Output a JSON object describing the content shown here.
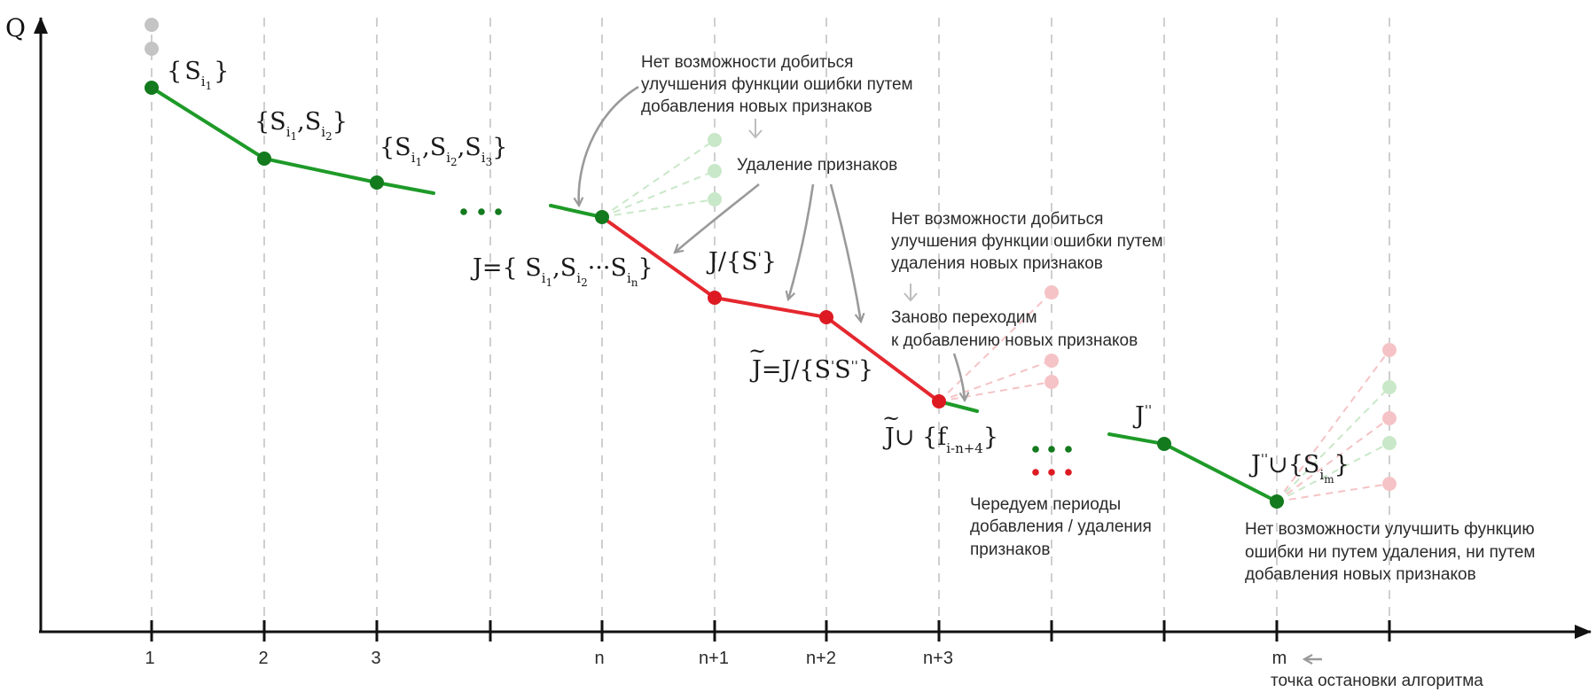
{
  "axis": {
    "y_label": "Q",
    "x_ticks": [
      "1",
      "2",
      "3",
      "n",
      "n+1",
      "n+2",
      "n+3",
      "m"
    ]
  },
  "annotations": {
    "no_add_improvement": [
      "Нет возможности добиться",
      "улучшения функции ошибки путем",
      "добавления новых признаков"
    ],
    "removal": "Удаление признаков",
    "no_remove_improvement": [
      "Нет возможности добиться",
      "улучшения функции ошибки путем",
      "удаления новых признаков"
    ],
    "restart_adding": [
      "Заново переходим",
      "к добавлению новых признаков"
    ],
    "alternate": [
      "Чередуем периоды",
      "добавления / удаления",
      "признаков"
    ],
    "no_improvement_final": [
      "Нет возможности улучшить функцию",
      "ошибки ни путем удаления, ни путем",
      "добавления новых признаков"
    ],
    "stop_point": "точка остановки алгоритма"
  },
  "set_labels": {
    "s1": {
      "brace_open": "{",
      "base": "S",
      "sub": "i",
      "subsub": "1",
      "brace_close": "}"
    },
    "s12": {
      "text": "{S",
      "sub1": "i",
      "subsub1": "1",
      "mid": ",S",
      "sub2": "i",
      "subsub2": "2",
      "end": "}"
    },
    "s123": {
      "text": "{S",
      "sub1": "i",
      "subsub1": "1",
      "mid1": ",S",
      "sub2": "i",
      "subsub2": "2",
      "mid2": ",S",
      "sub3": "i",
      "subsub3": "3",
      "end": "}"
    },
    "j_full": {
      "text": "J={ S",
      "sub1": "i",
      "subsub1": "1",
      "mid1": ",S",
      "sub2": "i",
      "subsub2": "2",
      "dots": "···S",
      "sub3": "i",
      "subsub3": "n",
      "end": "}"
    },
    "j_remove1": {
      "text": "J/{S",
      "prime": "'",
      "end": "}"
    },
    "j_tilde": {
      "tilde": "~",
      "text": "J=J/{S",
      "p1": "'",
      "mid": "S",
      "p2": "''",
      "end": "}"
    },
    "j_tilde_union": {
      "tilde": "~",
      "text": "J∪ {f",
      "sub": "i-n+4",
      "end": "}"
    },
    "j_dd": {
      "text": "J",
      "prime": "''"
    },
    "j_dd_union": {
      "text": "J",
      "prime": "''",
      "mid": "∪{S",
      "sub": "i",
      "subsub": "m",
      "end": "}"
    }
  },
  "colors": {
    "add_phase": "#1e9a28",
    "remove_phase": "#e5282f",
    "point_green": "#137a1e",
    "point_red": "#dd1a22",
    "faded_green": "#c9e8c9",
    "faded_red": "#f5c3c6",
    "grid": "#cfcfcf",
    "arrow": "#9a9a9a"
  }
}
